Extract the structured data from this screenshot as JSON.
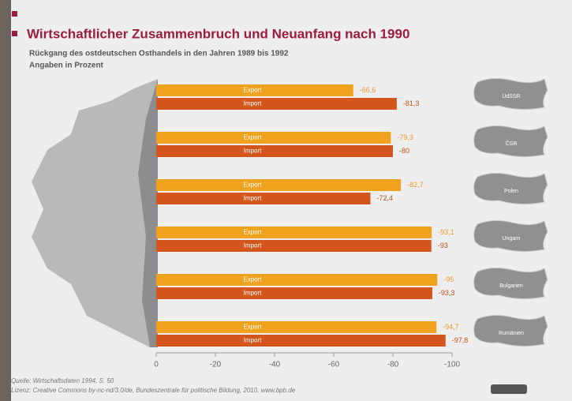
{
  "chart_data": {
    "type": "bar",
    "orientation": "horizontal",
    "title": "Wirtschaftlicher Zusammenbruch und Neuanfang nach 1990",
    "subtitle": "Rückgang des ostdeutschen Osthandels in den Jahren 1989 bis 1992",
    "unit_note": "Angaben in Prozent",
    "categories": [
      "UdSSR",
      "ČSR",
      "Polen",
      "Ungarn",
      "Bulgarien",
      "Rumänien"
    ],
    "series": [
      {
        "name": "Export",
        "color": "#f0a21e",
        "values": [
          -66.6,
          -79.3,
          -82.7,
          -93.1,
          -95,
          -94.7
        ],
        "value_labels": [
          "-66,6",
          "-79,3",
          "-82,7",
          "-93,1",
          "-95",
          "-94,7"
        ]
      },
      {
        "name": "Import",
        "color": "#d4561c",
        "values": [
          -81.3,
          -80,
          -72.4,
          -93,
          -93.3,
          -97.8
        ],
        "value_labels": [
          "-81,3",
          "-80",
          "-72,4",
          "-93",
          "-93,3",
          "-97,8"
        ]
      }
    ],
    "xlim": [
      0,
      -100
    ],
    "xticks": [
      0,
      -20,
      -40,
      -60,
      -80,
      -100
    ],
    "grid": false,
    "source": "Quelle: Wirtschaftsdaten 1994, S. 50",
    "license": "Lizenz: Creative Commons by-nc-nd/3.0/de, Bundeszentrale für politische Bildung, 2010, www.bpb.de"
  }
}
